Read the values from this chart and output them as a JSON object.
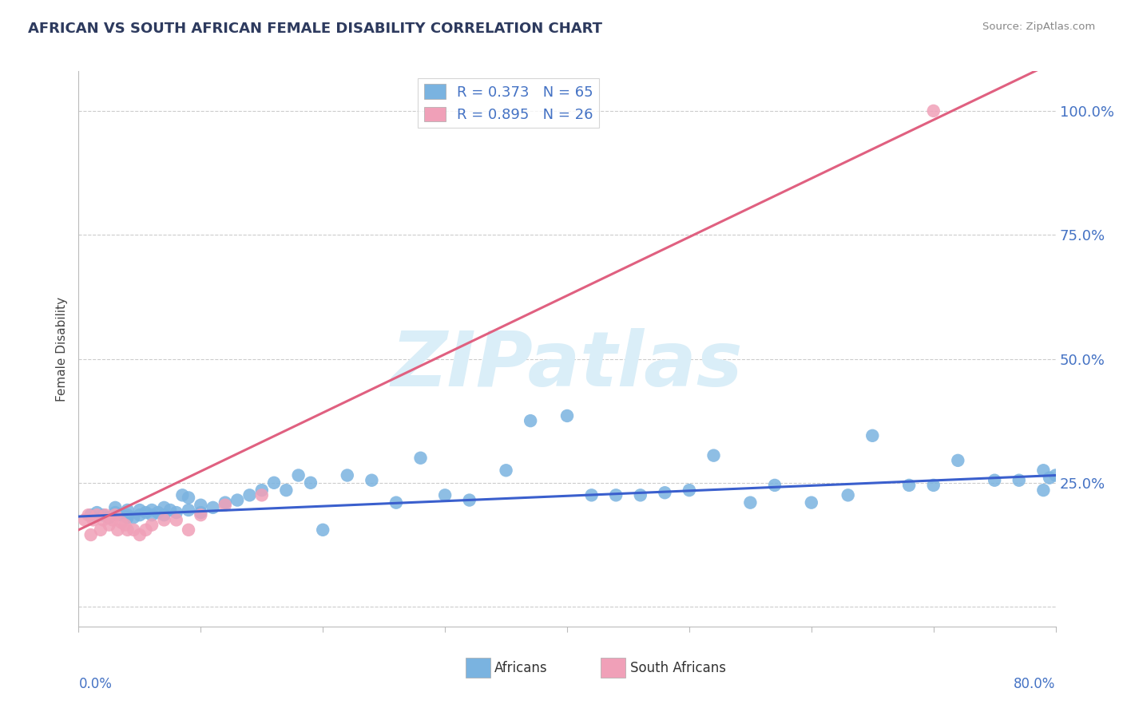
{
  "title": "AFRICAN VS SOUTH AFRICAN FEMALE DISABILITY CORRELATION CHART",
  "source": "Source: ZipAtlas.com",
  "ylabel": "Female Disability",
  "xmin": 0.0,
  "xmax": 0.8,
  "ymin": -0.04,
  "ymax": 1.08,
  "ytick_vals": [
    0.0,
    0.25,
    0.5,
    0.75,
    1.0
  ],
  "ytick_labels": [
    "",
    "25.0%",
    "50.0%",
    "75.0%",
    "100.0%"
  ],
  "legend_r1": "R = 0.373   N = 65",
  "legend_r2": "R = 0.895   N = 26",
  "color_blue": "#7ab3e0",
  "color_pink": "#f0a0b8",
  "line_blue": "#3a5fcd",
  "line_pink": "#e06080",
  "text_color_blue": "#4472c4",
  "watermark_color": "#daeef8",
  "blue_x": [
    0.01,
    0.015,
    0.02,
    0.025,
    0.03,
    0.03,
    0.035,
    0.04,
    0.04,
    0.04,
    0.045,
    0.05,
    0.05,
    0.055,
    0.06,
    0.06,
    0.065,
    0.07,
    0.07,
    0.075,
    0.08,
    0.085,
    0.09,
    0.09,
    0.1,
    0.1,
    0.11,
    0.12,
    0.13,
    0.14,
    0.15,
    0.16,
    0.17,
    0.18,
    0.19,
    0.2,
    0.22,
    0.24,
    0.26,
    0.28,
    0.3,
    0.32,
    0.35,
    0.37,
    0.4,
    0.42,
    0.44,
    0.46,
    0.48,
    0.5,
    0.52,
    0.55,
    0.57,
    0.6,
    0.63,
    0.65,
    0.68,
    0.7,
    0.72,
    0.75,
    0.77,
    0.79,
    0.79,
    0.795,
    0.8
  ],
  "blue_y": [
    0.185,
    0.19,
    0.185,
    0.18,
    0.19,
    0.2,
    0.185,
    0.18,
    0.185,
    0.195,
    0.18,
    0.185,
    0.195,
    0.19,
    0.185,
    0.195,
    0.19,
    0.185,
    0.2,
    0.195,
    0.19,
    0.225,
    0.195,
    0.22,
    0.19,
    0.205,
    0.2,
    0.21,
    0.215,
    0.225,
    0.235,
    0.25,
    0.235,
    0.265,
    0.25,
    0.155,
    0.265,
    0.255,
    0.21,
    0.3,
    0.225,
    0.215,
    0.275,
    0.375,
    0.385,
    0.225,
    0.225,
    0.225,
    0.23,
    0.235,
    0.305,
    0.21,
    0.245,
    0.21,
    0.225,
    0.345,
    0.245,
    0.245,
    0.295,
    0.255,
    0.255,
    0.235,
    0.275,
    0.26,
    0.265
  ],
  "pink_x": [
    0.005,
    0.008,
    0.01,
    0.012,
    0.015,
    0.018,
    0.02,
    0.022,
    0.025,
    0.028,
    0.03,
    0.032,
    0.035,
    0.038,
    0.04,
    0.045,
    0.05,
    0.055,
    0.06,
    0.07,
    0.08,
    0.09,
    0.1,
    0.12,
    0.15,
    0.7
  ],
  "pink_y": [
    0.175,
    0.185,
    0.145,
    0.175,
    0.185,
    0.155,
    0.175,
    0.185,
    0.165,
    0.175,
    0.185,
    0.155,
    0.17,
    0.165,
    0.155,
    0.155,
    0.145,
    0.155,
    0.165,
    0.175,
    0.175,
    0.155,
    0.185,
    0.205,
    0.225,
    1.0
  ],
  "blue_line_x": [
    0.0,
    0.8
  ],
  "blue_line_y": [
    0.182,
    0.265
  ],
  "pink_line_x": [
    0.0,
    0.8
  ],
  "pink_line_y": [
    0.155,
    1.1
  ]
}
